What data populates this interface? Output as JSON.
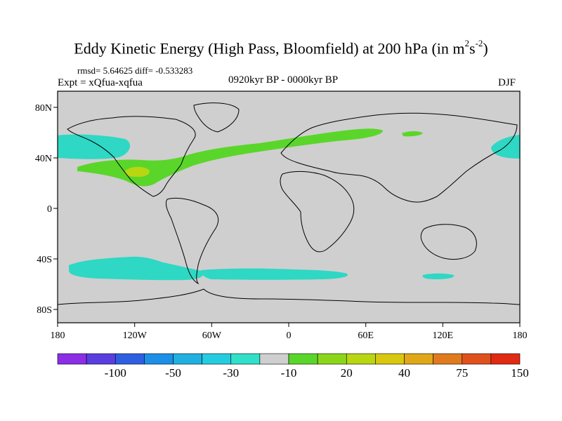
{
  "title": {
    "prefix": "Eddy Kinetic Energy (High Pass, Bloomfield) at 200 hPa (in m",
    "sup1": "2",
    "mid": "s",
    "sup2": "-2",
    "suffix": ")"
  },
  "stats": "rmsd= 5.64625 diff= -0.533283",
  "experiment": "Expt = xQfua-xqfua",
  "period": "0920kyr BP - 0000kyr BP",
  "season": "DJF",
  "axes": {
    "lat_labels": [
      "80N",
      "40N",
      "0",
      "40S",
      "80S"
    ],
    "lon_labels": [
      "180",
      "120W",
      "60W",
      "0",
      "60E",
      "120E",
      "180"
    ]
  },
  "colorbar": {
    "colors": [
      "#8b2ee6",
      "#5a3ee0",
      "#2e5fe0",
      "#1d8fe6",
      "#20b0e0",
      "#25cce0",
      "#30e0c8",
      "#cfcfcf",
      "#5ad62a",
      "#8cd61a",
      "#b8d612",
      "#d8c810",
      "#e0a818",
      "#e07a1e",
      "#e0501c",
      "#e02a14"
    ],
    "labels": [
      "-100",
      "-50",
      "-30",
      "-10",
      "20",
      "40",
      "75",
      "150"
    ]
  },
  "colors": {
    "ocean_land": "#cfcfcf",
    "negative": "#2ed8c4",
    "positive_low": "#5ad62a",
    "positive_mid": "#b8d612"
  }
}
